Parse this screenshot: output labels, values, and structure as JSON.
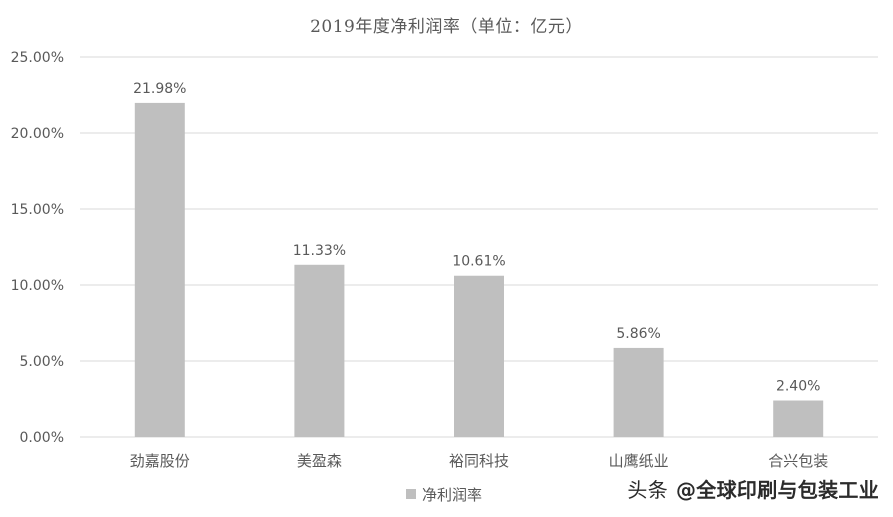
{
  "chart_data": {
    "type": "bar",
    "title": "2019年度净利润率（单位：亿元）",
    "categories": [
      "劲嘉股份",
      "美盈森",
      "裕同科技",
      "山鹰纸业",
      "合兴包装"
    ],
    "series": [
      {
        "name": "净利润率",
        "values": [
          21.98,
          11.33,
          10.61,
          5.86,
          2.4
        ],
        "data_labels": [
          "21.98%",
          "11.33%",
          "10.61%",
          "5.86%",
          "2.40%"
        ],
        "color": "#bfbfbf"
      }
    ],
    "ylim": [
      0,
      25
    ],
    "yticks": [
      0,
      5,
      10,
      15,
      20,
      25
    ],
    "ytick_labels": [
      "0.00%",
      "5.00%",
      "10.00%",
      "15.00%",
      "20.00%",
      "25.00%"
    ],
    "xlabel": "",
    "ylabel": "",
    "grid": true,
    "legend_position": "bottom",
    "colors": {
      "bar": "#bfbfbf",
      "grid": "#d9d9d9",
      "text": "#595959"
    }
  },
  "watermark": {
    "prefix": "头条",
    "handle": "@全球印刷与包装工业"
  }
}
